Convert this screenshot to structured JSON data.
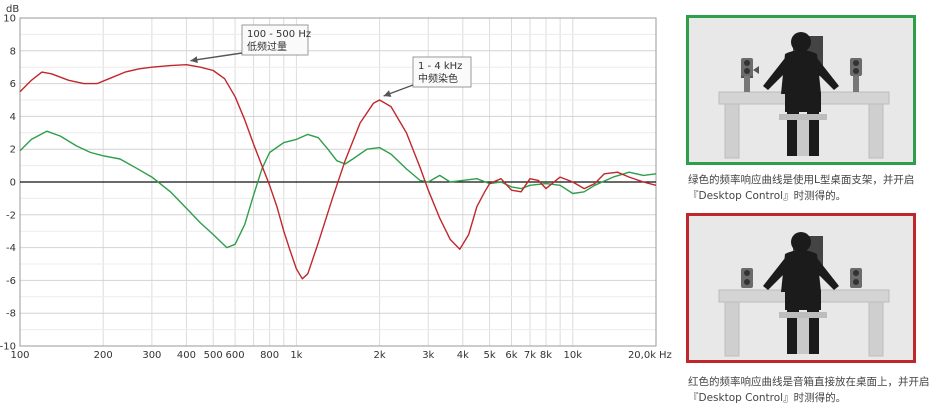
{
  "chart_data": {
    "type": "line",
    "ylabel": "dB",
    "xunit": "Hz",
    "xscale": "log",
    "xlim": [
      100,
      20000
    ],
    "ylim": [
      -10,
      10
    ],
    "grid": true,
    "yticks": [
      10,
      8,
      6,
      4,
      2,
      0,
      -2,
      -4,
      -6,
      -8,
      -10
    ],
    "xtick_values": [
      100,
      200,
      300,
      400,
      500,
      600,
      800,
      1000,
      2000,
      3000,
      4000,
      5000,
      6000,
      7000,
      8000,
      10000,
      20000
    ],
    "xtick_labels": [
      "100",
      "200",
      "300",
      "400",
      "500",
      "600",
      "800",
      "1k",
      "2k",
      "3k",
      "4k",
      "5k",
      "6k",
      "7k",
      "8k",
      "10k",
      "20,0k"
    ],
    "series": [
      {
        "color": "#2e9e4a",
        "points": [
          [
            100,
            1.9
          ],
          [
            110,
            2.6
          ],
          [
            125,
            3.1
          ],
          [
            140,
            2.8
          ],
          [
            160,
            2.2
          ],
          [
            180,
            1.8
          ],
          [
            200,
            1.6
          ],
          [
            230,
            1.4
          ],
          [
            260,
            0.9
          ],
          [
            300,
            0.3
          ],
          [
            350,
            -0.6
          ],
          [
            400,
            -1.6
          ],
          [
            450,
            -2.5
          ],
          [
            500,
            -3.2
          ],
          [
            560,
            -4.0
          ],
          [
            600,
            -3.8
          ],
          [
            650,
            -2.6
          ],
          [
            700,
            -0.8
          ],
          [
            750,
            0.8
          ],
          [
            800,
            1.8
          ],
          [
            900,
            2.4
          ],
          [
            1000,
            2.6
          ],
          [
            1100,
            2.9
          ],
          [
            1200,
            2.7
          ],
          [
            1300,
            2.0
          ],
          [
            1400,
            1.3
          ],
          [
            1500,
            1.1
          ],
          [
            1600,
            1.4
          ],
          [
            1800,
            2.0
          ],
          [
            2000,
            2.1
          ],
          [
            2200,
            1.7
          ],
          [
            2500,
            0.8
          ],
          [
            2800,
            0.1
          ],
          [
            3000,
            0.0
          ],
          [
            3300,
            0.4
          ],
          [
            3600,
            0.0
          ],
          [
            4000,
            0.1
          ],
          [
            4500,
            0.2
          ],
          [
            5000,
            -0.1
          ],
          [
            5500,
            0.0
          ],
          [
            6000,
            -0.3
          ],
          [
            6500,
            -0.4
          ],
          [
            7000,
            -0.2
          ],
          [
            8000,
            -0.1
          ],
          [
            9000,
            -0.2
          ],
          [
            10000,
            -0.7
          ],
          [
            11000,
            -0.6
          ],
          [
            12000,
            -0.2
          ],
          [
            14000,
            0.3
          ],
          [
            16000,
            0.6
          ],
          [
            18000,
            0.4
          ],
          [
            20000,
            0.5
          ]
        ]
      },
      {
        "color": "#c0272d",
        "points": [
          [
            100,
            5.5
          ],
          [
            110,
            6.2
          ],
          [
            120,
            6.7
          ],
          [
            130,
            6.6
          ],
          [
            150,
            6.2
          ],
          [
            170,
            6.0
          ],
          [
            190,
            6.0
          ],
          [
            210,
            6.3
          ],
          [
            240,
            6.7
          ],
          [
            270,
            6.9
          ],
          [
            300,
            7.0
          ],
          [
            350,
            7.1
          ],
          [
            400,
            7.15
          ],
          [
            450,
            7.0
          ],
          [
            500,
            6.8
          ],
          [
            550,
            6.3
          ],
          [
            600,
            5.2
          ],
          [
            650,
            3.8
          ],
          [
            700,
            2.3
          ],
          [
            750,
            1.0
          ],
          [
            800,
            -0.2
          ],
          [
            850,
            -1.5
          ],
          [
            900,
            -3.0
          ],
          [
            950,
            -4.2
          ],
          [
            1000,
            -5.3
          ],
          [
            1050,
            -5.9
          ],
          [
            1100,
            -5.6
          ],
          [
            1200,
            -3.7
          ],
          [
            1350,
            -1.0
          ],
          [
            1500,
            1.3
          ],
          [
            1700,
            3.6
          ],
          [
            1900,
            4.8
          ],
          [
            2000,
            5.0
          ],
          [
            2200,
            4.6
          ],
          [
            2500,
            3.0
          ],
          [
            2800,
            0.9
          ],
          [
            3000,
            -0.5
          ],
          [
            3300,
            -2.2
          ],
          [
            3600,
            -3.5
          ],
          [
            3900,
            -4.1
          ],
          [
            4200,
            -3.2
          ],
          [
            4500,
            -1.5
          ],
          [
            4800,
            -0.6
          ],
          [
            5000,
            -0.1
          ],
          [
            5500,
            0.2
          ],
          [
            6000,
            -0.5
          ],
          [
            6500,
            -0.6
          ],
          [
            7000,
            0.2
          ],
          [
            7500,
            0.1
          ],
          [
            8000,
            -0.4
          ],
          [
            9000,
            0.3
          ],
          [
            10000,
            0.0
          ],
          [
            11000,
            -0.4
          ],
          [
            12000,
            -0.1
          ],
          [
            13000,
            0.5
          ],
          [
            14500,
            0.6
          ],
          [
            16000,
            0.3
          ],
          [
            18000,
            0.0
          ],
          [
            20000,
            -0.2
          ]
        ]
      }
    ],
    "annotations": [
      {
        "line1": "100 - 500 Hz",
        "line2": "低频过量",
        "freq": 400,
        "db": 7.15
      },
      {
        "line1": "1 - 4 kHz",
        "line2": "中频染色",
        "freq": 2000,
        "db": 5.0
      }
    ]
  },
  "captions": {
    "green_line1": "绿色的频率响应曲线是使用L型桌面支架，并开启",
    "green_line2": "『Desktop Control』时测得的。",
    "red_line1": "红色的频率响应曲线是音箱直接放在桌面上，并开启",
    "red_line2": "『Desktop Control』时测得的。"
  },
  "colors": {
    "green": "#2e9e4a",
    "red": "#c0272d"
  }
}
